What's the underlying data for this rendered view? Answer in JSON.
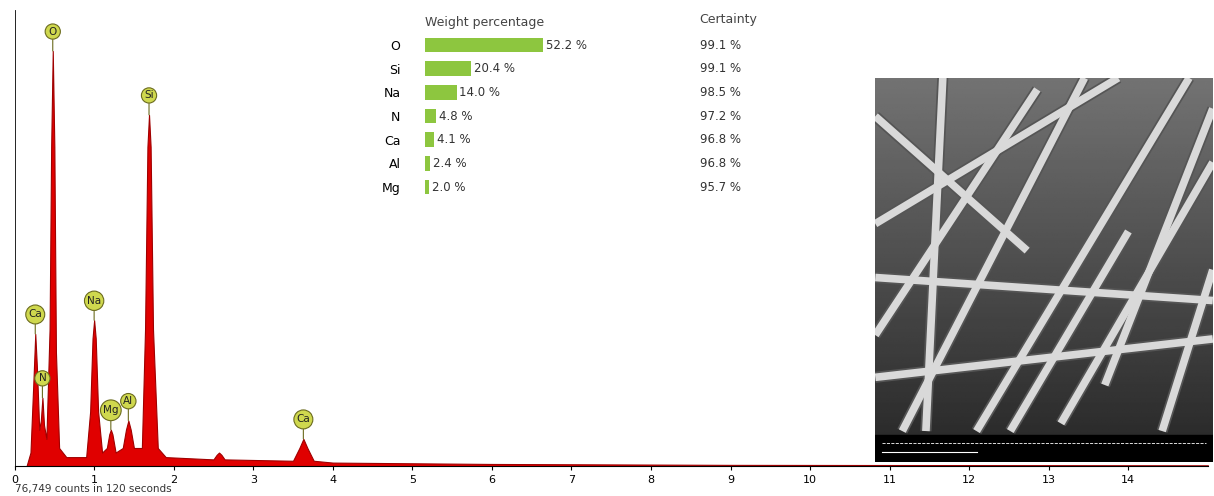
{
  "chart_data": [
    {
      "type": "area",
      "x": [
        0.15,
        0.2,
        0.24,
        0.26,
        0.28,
        0.31,
        0.33,
        0.35,
        0.37,
        0.4,
        0.44,
        0.46,
        0.48,
        0.5,
        0.52,
        0.56,
        0.65,
        0.9,
        0.95,
        0.98,
        1.0,
        1.02,
        1.05,
        1.1,
        1.16,
        1.19,
        1.21,
        1.23,
        1.27,
        1.36,
        1.4,
        1.43,
        1.46,
        1.5,
        1.6,
        1.64,
        1.67,
        1.69,
        1.71,
        1.74,
        1.8,
        1.9,
        2.5,
        2.54,
        2.57,
        2.6,
        2.64,
        3.5,
        3.58,
        3.63,
        3.68,
        3.76,
        4.0,
        6.0,
        9.0,
        15.0
      ],
      "values": [
        0,
        3,
        20,
        29,
        22,
        8,
        10,
        15,
        9,
        6,
        30,
        70,
        91,
        70,
        25,
        4,
        2,
        2,
        12,
        28,
        32,
        28,
        12,
        3,
        4,
        7,
        8,
        7,
        3,
        4,
        8,
        10,
        8,
        4,
        4,
        30,
        70,
        77,
        70,
        30,
        4,
        2,
        1.5,
        2.5,
        3,
        2.5,
        1.5,
        1.2,
        4,
        6,
        4,
        1.2,
        0.8,
        0.5,
        0.3,
        0.2
      ],
      "color": "#e00000",
      "xlim": [
        0,
        15
      ],
      "xticks": [
        0,
        1,
        2,
        3,
        4,
        5,
        6,
        7,
        8,
        9,
        10,
        11,
        12,
        13,
        14
      ],
      "ylim": [
        0,
        100
      ],
      "yticks": [],
      "tick_labels": "x",
      "annotations": [
        {
          "text": "Ca",
          "x": 0.26,
          "y": 29
        },
        {
          "text": "N",
          "x": 0.35,
          "y": 15
        },
        {
          "text": "O",
          "x": 0.48,
          "y": 91
        },
        {
          "text": "Na",
          "x": 1.0,
          "y": 32
        },
        {
          "text": "Mg",
          "x": 1.21,
          "y": 8
        },
        {
          "text": "Al",
          "x": 1.43,
          "y": 10
        },
        {
          "text": "Si",
          "x": 1.69,
          "y": 77
        },
        {
          "text": "Ca",
          "x": 3.63,
          "y": 6
        }
      ],
      "footnote": "76,749 counts in 120 seconds"
    },
    {
      "type": "bar",
      "orientation": "horizontal",
      "title": "Weight percentage",
      "categories": [
        "O",
        "Si",
        "Na",
        "N",
        "Ca",
        "Al",
        "Mg"
      ],
      "values": [
        52.2,
        20.4,
        14.0,
        4.8,
        4.1,
        2.4,
        2.0
      ],
      "value_labels": [
        "52.2 %",
        "20.4 %",
        "14.0 %",
        "4.8 %",
        "4.1 %",
        "2.4 %",
        "2.0 %"
      ],
      "data_labels": true,
      "color": "#8dc63f",
      "xlim": [
        0,
        100
      ],
      "xticks": [],
      "tick_labels": "y",
      "certainty_title": "Certainty",
      "certainty_labels": [
        "99.1 %",
        "99.1 %",
        "98.5 %",
        "97.2 %",
        "96.8 %",
        "96.8 %",
        "95.7 %"
      ]
    }
  ]
}
